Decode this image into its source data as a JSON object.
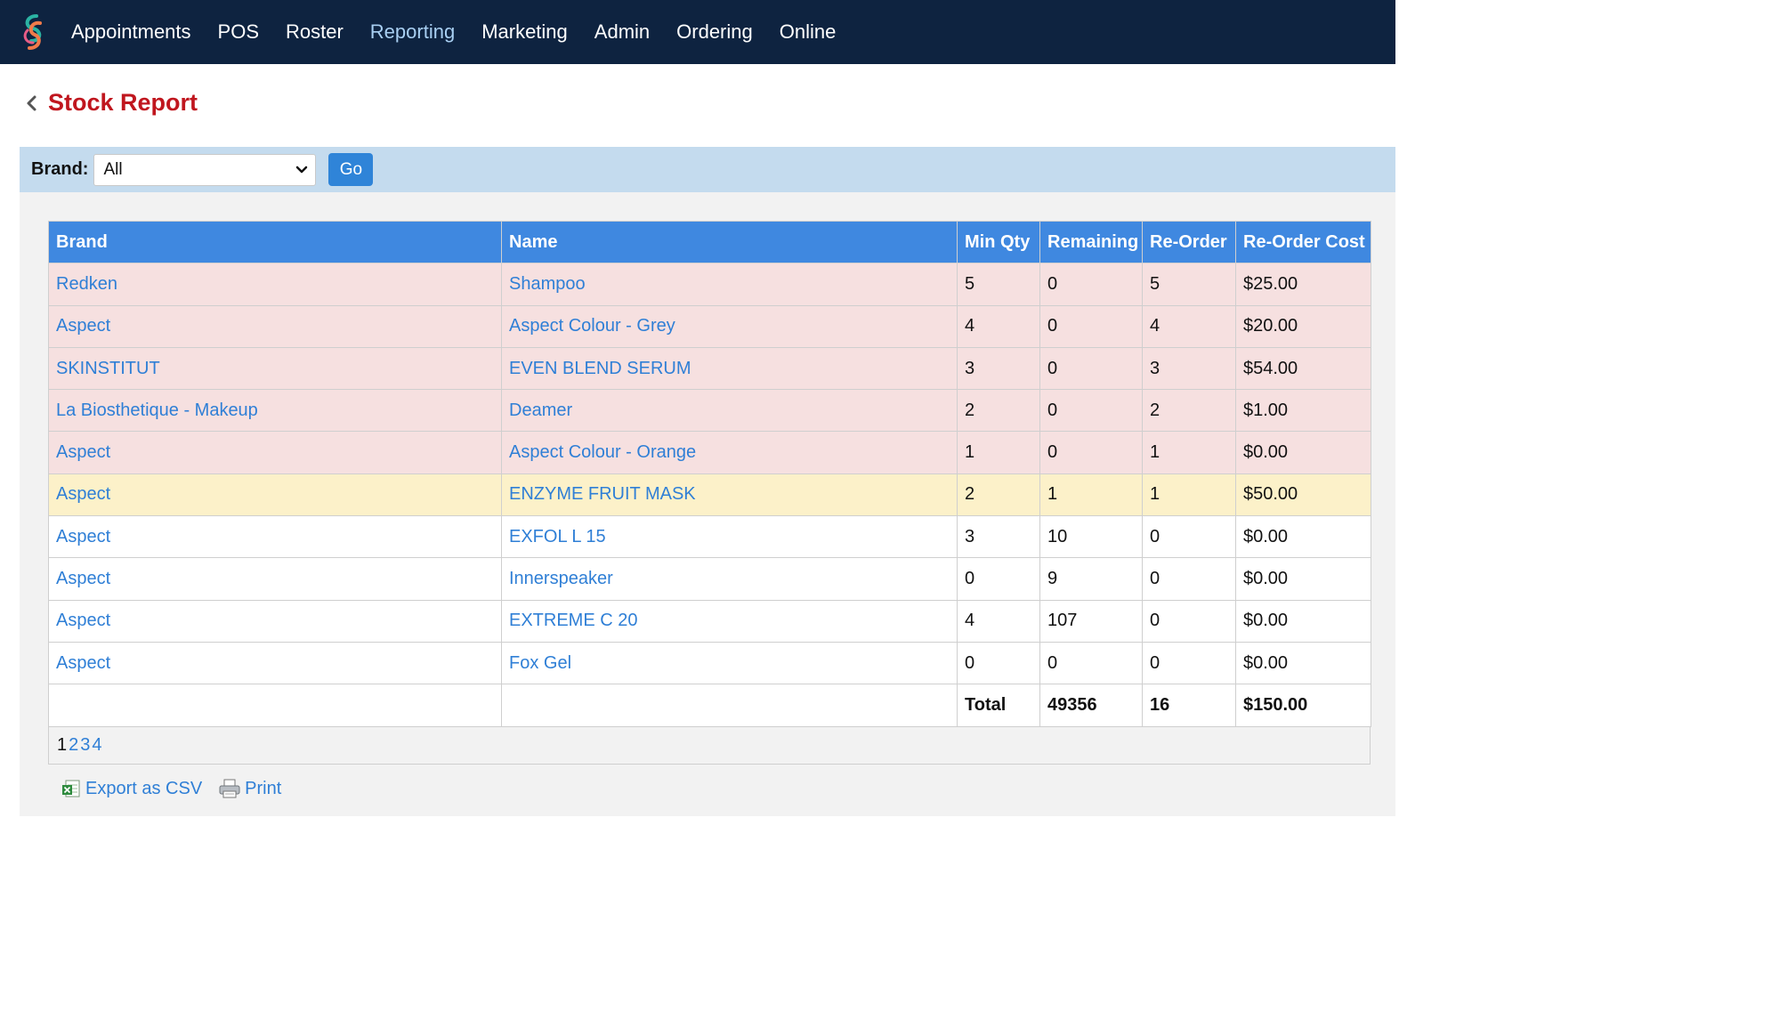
{
  "nav": {
    "items": [
      {
        "label": "Appointments",
        "active": false
      },
      {
        "label": "POS",
        "active": false
      },
      {
        "label": "Roster",
        "active": false
      },
      {
        "label": "Reporting",
        "active": true
      },
      {
        "label": "Marketing",
        "active": false
      },
      {
        "label": "Admin",
        "active": false
      },
      {
        "label": "Ordering",
        "active": false
      },
      {
        "label": "Online",
        "active": false
      }
    ]
  },
  "page": {
    "title": "Stock Report"
  },
  "filter": {
    "label": "Brand:",
    "selected": "All",
    "go_label": "Go"
  },
  "table": {
    "headers": [
      "Brand",
      "Name",
      "Min Qty",
      "Remaining",
      "Re-Order",
      "Re-Order Cost"
    ],
    "rows": [
      {
        "status": "red",
        "brand": "Redken",
        "name": "Shampoo",
        "min_qty": "5",
        "remaining": "0",
        "reorder": "5",
        "cost": "$25.00"
      },
      {
        "status": "red",
        "brand": "Aspect",
        "name": "Aspect Colour - Grey",
        "min_qty": "4",
        "remaining": "0",
        "reorder": "4",
        "cost": "$20.00"
      },
      {
        "status": "red",
        "brand": "SKINSTITUT",
        "name": "EVEN BLEND SERUM",
        "min_qty": "3",
        "remaining": "0",
        "reorder": "3",
        "cost": "$54.00"
      },
      {
        "status": "red",
        "brand": "La Biosthetique - Makeup",
        "name": "Deamer",
        "min_qty": "2",
        "remaining": "0",
        "reorder": "2",
        "cost": "$1.00"
      },
      {
        "status": "red",
        "brand": "Aspect",
        "name": "Aspect Colour - Orange",
        "min_qty": "1",
        "remaining": "0",
        "reorder": "1",
        "cost": "$0.00"
      },
      {
        "status": "yellow",
        "brand": "Aspect",
        "name": "ENZYME FRUIT MASK",
        "min_qty": "2",
        "remaining": "1",
        "reorder": "1",
        "cost": "$50.00"
      },
      {
        "status": "white",
        "brand": "Aspect",
        "name": "EXFOL L 15",
        "min_qty": "3",
        "remaining": "10",
        "reorder": "0",
        "cost": "$0.00"
      },
      {
        "status": "white",
        "brand": "Aspect",
        "name": "Innerspeaker",
        "min_qty": "0",
        "remaining": "9",
        "reorder": "0",
        "cost": "$0.00"
      },
      {
        "status": "white",
        "brand": "Aspect",
        "name": "EXTREME C 20",
        "min_qty": "4",
        "remaining": "107",
        "reorder": "0",
        "cost": "$0.00"
      },
      {
        "status": "white",
        "brand": "Aspect",
        "name": "Fox Gel",
        "min_qty": "0",
        "remaining": "0",
        "reorder": "0",
        "cost": "$0.00"
      }
    ],
    "totals": {
      "label": "Total",
      "remaining": "49356",
      "reorder": "16",
      "cost": "$150.00"
    }
  },
  "pagination": {
    "current": "1",
    "pages": [
      "2",
      "3",
      "4"
    ]
  },
  "actions": {
    "export_label": "Export as CSV",
    "print_label": "Print"
  },
  "colors": {
    "nav_bg": "#0e2340",
    "title": "#c0161e",
    "header_bg": "#3f88e0",
    "link": "#2f7fd6",
    "row_red": "#f6e0e0",
    "row_yellow": "#fcf1c9"
  }
}
